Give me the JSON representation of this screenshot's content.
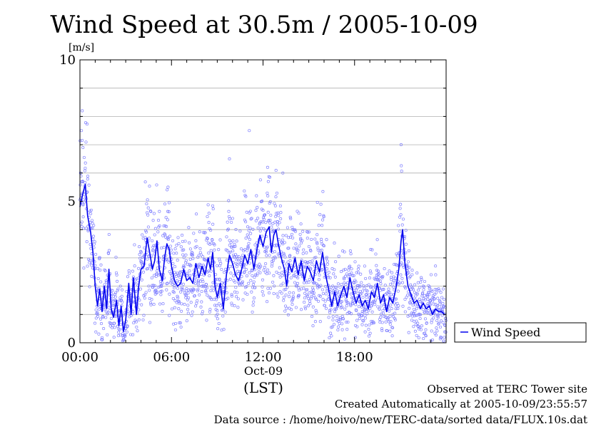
{
  "chart_data": {
    "type": "scatter",
    "title": "Wind Speed at 30.5m / 2005-10-09",
    "ylabel": "[m/s]",
    "ylim": [
      0,
      10
    ],
    "xlim_hours": [
      0,
      24
    ],
    "y_ticks": [
      "0",
      "5",
      "10"
    ],
    "x_ticks": [
      {
        "hour": 0,
        "label": "00:00"
      },
      {
        "hour": 6,
        "label": "06:00"
      },
      {
        "hour": 12,
        "label": "12:00"
      },
      {
        "hour": 18,
        "label": "18:00"
      }
    ],
    "x_date_label": "Oct-09",
    "x_tz_label": "(LST)",
    "grid": "horizontal",
    "legend_position": "right",
    "series": [
      {
        "name": "Wind Speed",
        "color": "#0000ee",
        "mean_profile": [
          [
            0.0,
            4.8
          ],
          [
            0.2,
            5.3
          ],
          [
            0.35,
            5.6
          ],
          [
            0.5,
            4.5
          ],
          [
            0.7,
            3.9
          ],
          [
            0.85,
            3.2
          ],
          [
            1.0,
            2.0
          ],
          [
            1.15,
            1.3
          ],
          [
            1.3,
            1.9
          ],
          [
            1.45,
            1.1
          ],
          [
            1.6,
            2.0
          ],
          [
            1.75,
            1.2
          ],
          [
            1.9,
            2.6
          ],
          [
            2.05,
            1.2
          ],
          [
            2.2,
            0.9
          ],
          [
            2.4,
            1.5
          ],
          [
            2.55,
            0.6
          ],
          [
            2.7,
            1.3
          ],
          [
            2.85,
            0.4
          ],
          [
            3.0,
            0.8
          ],
          [
            3.2,
            2.1
          ],
          [
            3.35,
            1.0
          ],
          [
            3.5,
            2.3
          ],
          [
            3.7,
            1.0
          ],
          [
            3.85,
            2.0
          ],
          [
            4.0,
            2.6
          ],
          [
            4.2,
            2.7
          ],
          [
            4.4,
            3.7
          ],
          [
            4.6,
            3.1
          ],
          [
            4.75,
            2.6
          ],
          [
            4.9,
            2.9
          ],
          [
            5.05,
            3.6
          ],
          [
            5.2,
            2.6
          ],
          [
            5.4,
            2.2
          ],
          [
            5.55,
            3.0
          ],
          [
            5.7,
            3.5
          ],
          [
            5.85,
            3.3
          ],
          [
            6.0,
            2.7
          ],
          [
            6.2,
            2.2
          ],
          [
            6.4,
            2.0
          ],
          [
            6.6,
            2.1
          ],
          [
            6.8,
            2.6
          ],
          [
            7.0,
            2.2
          ],
          [
            7.2,
            2.3
          ],
          [
            7.4,
            2.1
          ],
          [
            7.6,
            2.8
          ],
          [
            7.8,
            2.3
          ],
          [
            8.0,
            2.7
          ],
          [
            8.2,
            2.4
          ],
          [
            8.4,
            3.0
          ],
          [
            8.55,
            2.6
          ],
          [
            8.7,
            3.2
          ],
          [
            8.85,
            2.0
          ],
          [
            9.0,
            1.6
          ],
          [
            9.2,
            2.1
          ],
          [
            9.4,
            1.2
          ],
          [
            9.6,
            2.4
          ],
          [
            9.8,
            3.1
          ],
          [
            10.0,
            2.8
          ],
          [
            10.2,
            2.4
          ],
          [
            10.4,
            2.2
          ],
          [
            10.6,
            2.6
          ],
          [
            10.8,
            3.1
          ],
          [
            11.0,
            2.8
          ],
          [
            11.2,
            3.3
          ],
          [
            11.4,
            2.6
          ],
          [
            11.6,
            3.3
          ],
          [
            11.8,
            3.8
          ],
          [
            12.0,
            3.4
          ],
          [
            12.2,
            3.9
          ],
          [
            12.4,
            4.1
          ],
          [
            12.55,
            3.2
          ],
          [
            12.7,
            3.8
          ],
          [
            12.85,
            4.0
          ],
          [
            13.0,
            3.5
          ],
          [
            13.2,
            3.0
          ],
          [
            13.4,
            2.6
          ],
          [
            13.55,
            2.0
          ],
          [
            13.7,
            2.8
          ],
          [
            13.9,
            2.5
          ],
          [
            14.1,
            3.0
          ],
          [
            14.3,
            2.4
          ],
          [
            14.5,
            2.9
          ],
          [
            14.7,
            2.2
          ],
          [
            14.9,
            2.7
          ],
          [
            15.1,
            2.5
          ],
          [
            15.3,
            2.2
          ],
          [
            15.5,
            2.9
          ],
          [
            15.7,
            2.5
          ],
          [
            15.9,
            3.2
          ],
          [
            16.1,
            2.4
          ],
          [
            16.3,
            1.9
          ],
          [
            16.5,
            1.3
          ],
          [
            16.7,
            1.8
          ],
          [
            16.9,
            1.3
          ],
          [
            17.1,
            1.7
          ],
          [
            17.3,
            2.0
          ],
          [
            17.5,
            1.6
          ],
          [
            17.7,
            2.3
          ],
          [
            17.9,
            1.8
          ],
          [
            18.1,
            1.4
          ],
          [
            18.3,
            1.7
          ],
          [
            18.5,
            1.3
          ],
          [
            18.7,
            1.5
          ],
          [
            18.9,
            1.2
          ],
          [
            19.1,
            1.8
          ],
          [
            19.3,
            1.6
          ],
          [
            19.5,
            2.1
          ],
          [
            19.7,
            1.4
          ],
          [
            19.9,
            1.7
          ],
          [
            20.1,
            1.1
          ],
          [
            20.3,
            1.6
          ],
          [
            20.5,
            1.4
          ],
          [
            20.7,
            1.9
          ],
          [
            20.9,
            2.6
          ],
          [
            21.05,
            3.6
          ],
          [
            21.15,
            4.0
          ],
          [
            21.3,
            2.8
          ],
          [
            21.5,
            2.0
          ],
          [
            21.7,
            1.7
          ],
          [
            21.9,
            1.4
          ],
          [
            22.1,
            1.5
          ],
          [
            22.3,
            1.2
          ],
          [
            22.5,
            1.4
          ],
          [
            22.7,
            1.2
          ],
          [
            22.9,
            1.3
          ],
          [
            23.1,
            1.0
          ],
          [
            23.3,
            1.2
          ],
          [
            23.5,
            1.1
          ],
          [
            23.7,
            1.1
          ],
          [
            23.9,
            1.0
          ]
        ],
        "scatter_note": "10-second samples spread around the mean, max about 8.2 m/s near 00:05"
      }
    ],
    "footer": [
      "Observed at TERC Tower site",
      "Created Automatically at 2005-10-09/23:55:57",
      "Data source : /home/hoivo/new/TERC-data/sorted  data/FLUX.10s.dat"
    ]
  }
}
